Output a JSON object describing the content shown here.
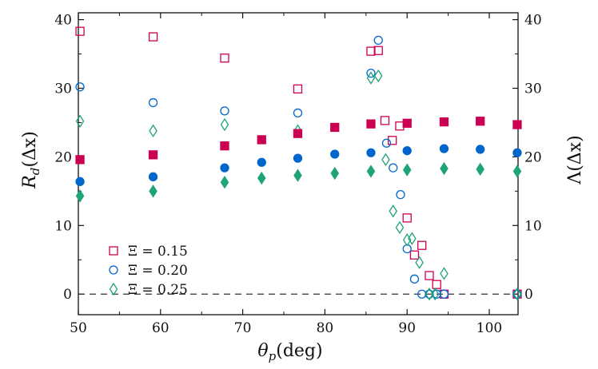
{
  "chart_data": {
    "type": "scatter",
    "title": "",
    "xlabel": {
      "main": "θ",
      "sub": "p",
      "rest": "(deg)"
    },
    "ylabel_left": {
      "main": "R",
      "sub": "d",
      "rest": "(Δx)"
    },
    "ylabel_right": {
      "main": "Λ",
      "rest": "(Δx)"
    },
    "xlim": [
      50,
      103.5
    ],
    "ylim": [
      -3,
      41
    ],
    "xticks": [
      50,
      60,
      70,
      80,
      90,
      100
    ],
    "yticks": [
      0,
      10,
      20,
      30,
      40
    ],
    "reference_line": {
      "y": 0,
      "style": "dashed"
    },
    "legend_position": "bottom-left",
    "colors": {
      "0.15": "#cc0052",
      "0.20": "#0066cc",
      "0.25": "#1fa37a"
    },
    "series": [
      {
        "name": "Ξ = 0.15 (R_d)",
        "legend_label": "Ξ = 0.15",
        "marker": "square",
        "fill": "open",
        "color": "#cc0052",
        "points": [
          [
            50.2,
            38.3
          ],
          [
            59.1,
            37.5
          ],
          [
            67.8,
            34.4
          ],
          [
            76.7,
            29.9
          ],
          [
            85.6,
            35.4
          ],
          [
            86.5,
            35.5
          ],
          [
            87.3,
            25.3
          ],
          [
            88.2,
            22.4
          ],
          [
            89.1,
            24.5
          ],
          [
            90.0,
            11.1
          ],
          [
            90.9,
            5.7
          ],
          [
            91.8,
            7.1
          ],
          [
            92.7,
            2.7
          ],
          [
            93.6,
            1.4
          ],
          [
            94.5,
            0.0
          ],
          [
            103.4,
            0.0
          ]
        ]
      },
      {
        "name": "Ξ = 0.20 (R_d)",
        "legend_label": "Ξ = 0.20",
        "marker": "circle",
        "fill": "open",
        "color": "#0066cc",
        "points": [
          [
            50.2,
            30.2
          ],
          [
            59.1,
            27.9
          ],
          [
            67.8,
            26.7
          ],
          [
            76.7,
            26.4
          ],
          [
            85.6,
            32.2
          ],
          [
            86.5,
            37.0
          ],
          [
            87.5,
            22.0
          ],
          [
            88.3,
            18.4
          ],
          [
            89.2,
            14.5
          ],
          [
            90.0,
            6.6
          ],
          [
            90.9,
            2.2
          ],
          [
            91.8,
            0.0
          ],
          [
            92.7,
            0.0
          ],
          [
            93.6,
            0.0
          ],
          [
            94.5,
            0.0
          ],
          [
            103.4,
            0.0
          ]
        ]
      },
      {
        "name": "Ξ = 0.25 (R_d)",
        "legend_label": "Ξ = 0.25",
        "marker": "diamond",
        "fill": "open",
        "color": "#1fa37a",
        "points": [
          [
            50.2,
            25.2
          ],
          [
            59.1,
            23.8
          ],
          [
            67.8,
            24.7
          ],
          [
            76.7,
            23.8
          ],
          [
            85.6,
            31.5
          ],
          [
            86.5,
            31.8
          ],
          [
            87.4,
            19.6
          ],
          [
            88.3,
            12.1
          ],
          [
            89.1,
            9.7
          ],
          [
            90.0,
            7.9
          ],
          [
            90.6,
            8.1
          ],
          [
            91.5,
            4.6
          ],
          [
            92.7,
            0.0
          ],
          [
            93.4,
            0.0
          ],
          [
            94.5,
            3.0
          ],
          [
            103.4,
            0.0
          ]
        ]
      },
      {
        "name": "Ξ = 0.15 (Λ)",
        "marker": "square",
        "fill": "filled",
        "color": "#cc0052",
        "points": [
          [
            50.2,
            19.6
          ],
          [
            59.1,
            20.3
          ],
          [
            67.8,
            21.6
          ],
          [
            72.3,
            22.5
          ],
          [
            76.7,
            23.4
          ],
          [
            81.2,
            24.3
          ],
          [
            85.6,
            24.8
          ],
          [
            90.0,
            24.9
          ],
          [
            94.5,
            25.1
          ],
          [
            98.9,
            25.2
          ],
          [
            103.4,
            24.7
          ]
        ]
      },
      {
        "name": "Ξ = 0.20 (Λ)",
        "marker": "circle",
        "fill": "filled",
        "color": "#0066cc",
        "points": [
          [
            50.2,
            16.4
          ],
          [
            59.1,
            17.1
          ],
          [
            67.8,
            18.4
          ],
          [
            72.3,
            19.2
          ],
          [
            76.7,
            19.8
          ],
          [
            81.2,
            20.4
          ],
          [
            85.6,
            20.6
          ],
          [
            90.0,
            20.9
          ],
          [
            94.5,
            21.2
          ],
          [
            98.9,
            21.1
          ],
          [
            103.4,
            20.6
          ]
        ]
      },
      {
        "name": "Ξ = 0.25 (Λ)",
        "marker": "diamond",
        "fill": "filled",
        "color": "#1fa37a",
        "points": [
          [
            50.2,
            14.3
          ],
          [
            59.1,
            15.0
          ],
          [
            67.8,
            16.3
          ],
          [
            72.3,
            16.9
          ],
          [
            76.7,
            17.3
          ],
          [
            81.2,
            17.6
          ],
          [
            85.6,
            17.9
          ],
          [
            90.0,
            18.1
          ],
          [
            94.5,
            18.3
          ],
          [
            98.9,
            18.2
          ],
          [
            103.4,
            17.9
          ]
        ]
      }
    ]
  }
}
